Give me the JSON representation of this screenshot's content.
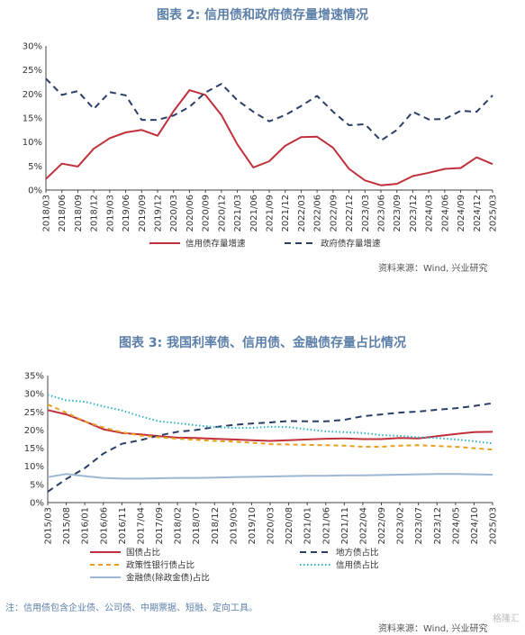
{
  "chart_data": [
    {
      "type": "line",
      "title": "图表 2:  信用债和政府债存量增速情况",
      "source": "资料来源：Wind, 兴业研究",
      "ylim": [
        0,
        30
      ],
      "yticks": [
        "0%",
        "5%",
        "10%",
        "15%",
        "20%",
        "25%",
        "30%"
      ],
      "categories": [
        "2018/03",
        "2018/06",
        "2018/09",
        "2018/12",
        "2019/03",
        "2019/06",
        "2019/09",
        "2019/12",
        "2020/03",
        "2020/06",
        "2020/09",
        "2020/12",
        "2021/03",
        "2021/06",
        "2021/09",
        "2021/12",
        "2022/03",
        "2022/06",
        "2022/09",
        "2022/12",
        "2023/03",
        "2023/06",
        "2023/09",
        "2023/12",
        "2024/03",
        "2024/06",
        "2024/09",
        "2024/12",
        "2025/03"
      ],
      "series": [
        {
          "name": "信用债存量增速",
          "color": "#c0303b",
          "dash": "",
          "values": [
            2.3,
            5.5,
            4.9,
            8.6,
            10.8,
            12.0,
            12.5,
            11.3,
            16.4,
            20.8,
            19.8,
            15.6,
            9.5,
            4.7,
            6.0,
            9.2,
            11.0,
            11.1,
            8.8,
            4.4,
            2.0,
            1.0,
            1.3,
            2.9,
            3.6,
            4.4,
            4.6,
            6.8,
            5.4
          ]
        },
        {
          "name": "政府债存量增速",
          "color": "#2b3f66",
          "dash": "7,5",
          "values": [
            23.2,
            19.8,
            20.6,
            16.9,
            20.4,
            19.7,
            14.6,
            14.6,
            15.5,
            17.3,
            20.3,
            22.1,
            18.7,
            16.3,
            14.3,
            15.6,
            17.5,
            19.6,
            16.3,
            13.5,
            13.7,
            10.3,
            12.5,
            16.3,
            14.7,
            14.8,
            16.5,
            16.3,
            19.7
          ]
        }
      ],
      "legend_placement": "bottom",
      "grid": false
    },
    {
      "type": "line",
      "title": "图表 3:  我国利率债、信用债、金融债存量占比情况",
      "source": "资料来源：Wind, 兴业研究",
      "ylim": [
        0,
        35
      ],
      "yticks": [
        "0%",
        "5%",
        "10%",
        "15%",
        "20%",
        "25%",
        "30%",
        "35%"
      ],
      "categories": [
        "2015/03",
        "2015/08",
        "2016/01",
        "2016/06",
        "2016/11",
        "2017/04",
        "2017/09",
        "2018/02",
        "2018/07",
        "2018/12",
        "2019/05",
        "2019/10",
        "2020/03",
        "2020/08",
        "2021/01",
        "2021/06",
        "2021/11",
        "2022/04",
        "2022/09",
        "2023/02",
        "2023/07",
        "2023/12",
        "2024/05",
        "2024/10",
        "2025/03"
      ],
      "series": [
        {
          "name": "国债占比",
          "color": "#c0303b",
          "dash": "",
          "values": [
            25.5,
            24.3,
            22.4,
            20.2,
            19.2,
            18.8,
            18.3,
            17.9,
            17.8,
            17.6,
            17.4,
            17.2,
            17.0,
            17.2,
            17.4,
            17.6,
            17.7,
            17.5,
            17.5,
            17.8,
            17.7,
            18.3,
            18.9,
            19.4,
            19.5
          ]
        },
        {
          "name": "地方债占比",
          "color": "#2b3f66",
          "dash": "7,5",
          "values": [
            3.0,
            6.5,
            9.5,
            13.5,
            16.2,
            17.2,
            18.5,
            19.5,
            20.0,
            20.8,
            21.4,
            21.8,
            22.1,
            22.5,
            22.4,
            22.4,
            22.8,
            23.8,
            24.3,
            24.8,
            25.1,
            25.6,
            26.0,
            26.6,
            27.4
          ]
        },
        {
          "name": "政策性银行债占比",
          "color": "#e8a020",
          "dash": "5,4",
          "values": [
            27.0,
            24.8,
            22.4,
            20.7,
            19.4,
            18.5,
            18.0,
            17.6,
            17.3,
            17.0,
            16.8,
            16.5,
            16.1,
            16.0,
            15.9,
            15.8,
            15.7,
            15.4,
            15.4,
            15.7,
            15.8,
            15.6,
            15.4,
            15.0,
            14.6
          ]
        },
        {
          "name": "信用债占比",
          "color": "#2fb0c4",
          "dash": "1.5,2.5",
          "values": [
            29.7,
            28.2,
            27.8,
            26.5,
            25.4,
            23.8,
            22.4,
            21.9,
            21.3,
            20.8,
            20.6,
            20.6,
            20.9,
            20.8,
            20.2,
            19.6,
            19.4,
            19.2,
            18.6,
            18.4,
            18.0,
            17.8,
            17.4,
            16.9,
            16.3
          ]
        },
        {
          "name": "金融债(除政金债)占比",
          "color": "#9db8d2",
          "dash": "",
          "values": [
            7.0,
            7.9,
            7.3,
            6.8,
            6.6,
            6.6,
            6.7,
            6.8,
            6.8,
            6.9,
            7.0,
            7.1,
            7.2,
            7.3,
            7.4,
            7.4,
            7.5,
            7.5,
            7.6,
            7.7,
            7.8,
            7.9,
            7.9,
            7.8,
            7.7
          ]
        }
      ],
      "legend_placement": "bottom",
      "grid": false
    }
  ],
  "note": "注：信用债包含企业债、公司债、中期票据、短融、定向工具。",
  "watermark": "格隆汇"
}
